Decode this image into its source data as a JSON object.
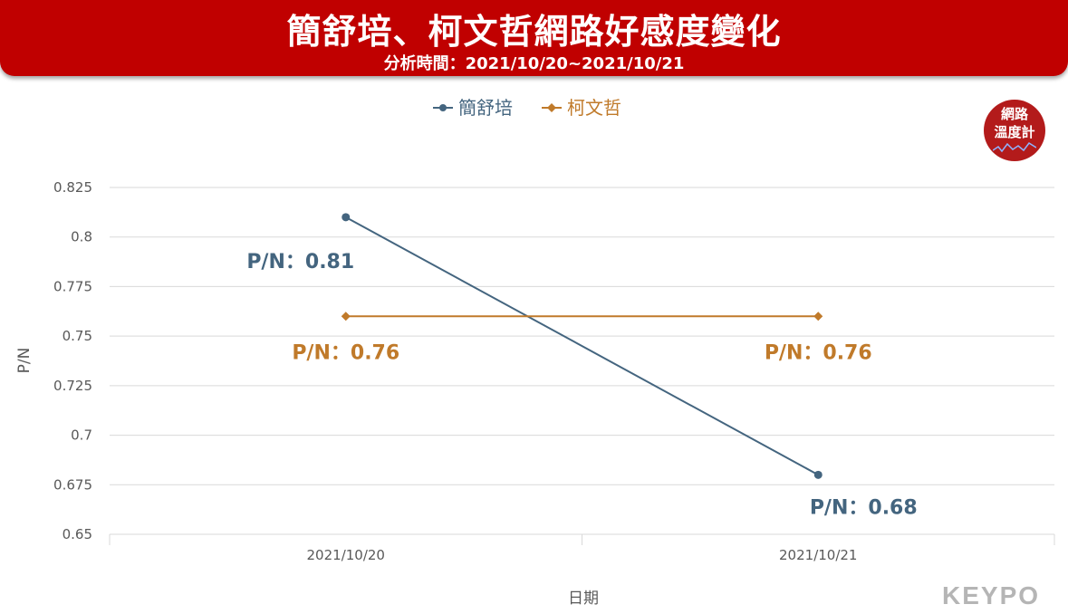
{
  "header": {
    "title": "簡舒培、柯文哲網路好感度變化",
    "subtitle": "分析時間：2021/10/20~2021/10/21"
  },
  "badge": {
    "line1": "網路",
    "line2": "溫度計"
  },
  "brand": {
    "logo_text": "KEYPO"
  },
  "colors": {
    "header_bg": "#c00000",
    "series1": "#44657f",
    "series2": "#c07a2a",
    "grid": "#d9d9d9"
  },
  "chart_data": {
    "type": "line",
    "categories": [
      "2021/10/20",
      "2021/10/21"
    ],
    "series": [
      {
        "name": "簡舒培",
        "values": [
          0.81,
          0.68
        ],
        "color": "#44657f",
        "labels": [
          "P/N：0.81",
          "P/N：0.68"
        ]
      },
      {
        "name": "柯文哲",
        "values": [
          0.76,
          0.76
        ],
        "color": "#c07a2a",
        "labels": [
          "P/N：0.76",
          "P/N：0.76"
        ]
      }
    ],
    "xlabel": "日期",
    "ylabel": "P/N",
    "ylim": [
      0.65,
      0.825
    ],
    "yticks": [
      "0.65",
      "0.675",
      "0.7",
      "0.725",
      "0.75",
      "0.775",
      "0.8",
      "0.825"
    ],
    "grid": true,
    "legend": "top-center"
  }
}
